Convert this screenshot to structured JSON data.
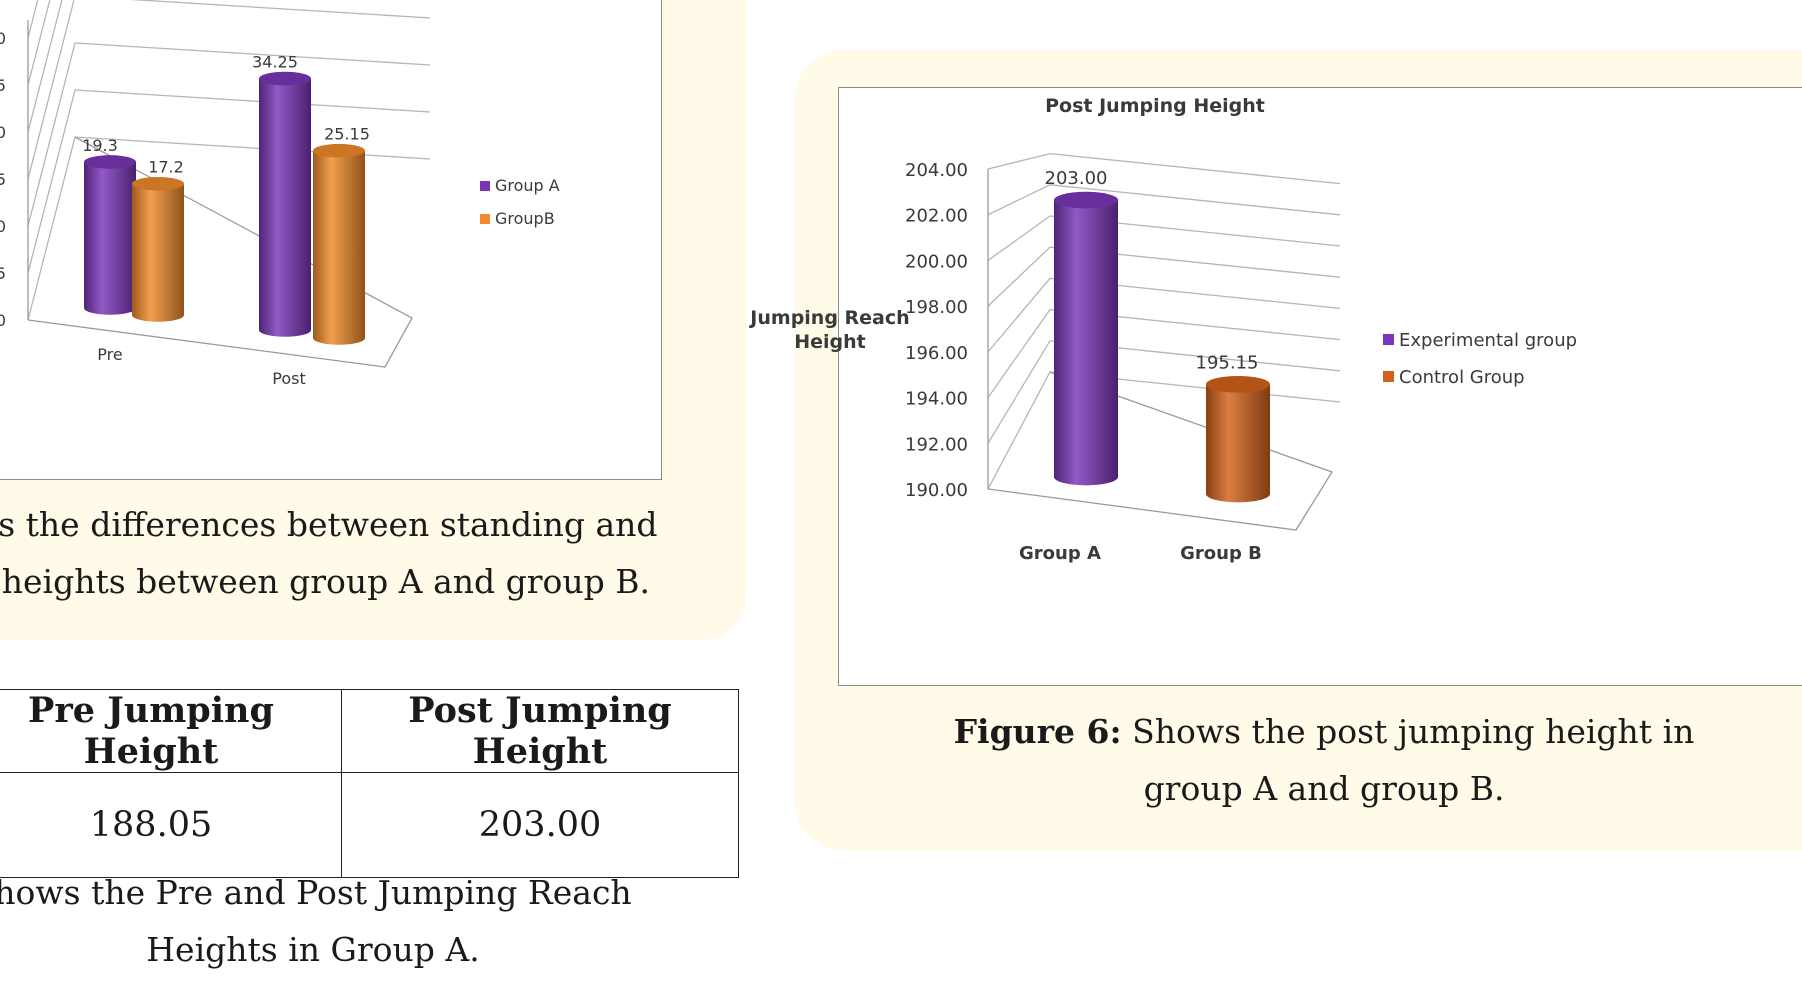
{
  "figure5": {
    "caption_line1": "ws the differences between standing and",
    "caption_line2": "h heights between group A and group B."
  },
  "figure6": {
    "caption_label": "Figure 6:",
    "caption_line1": " Shows the post jumping height in",
    "caption_line2": "group A and group B."
  },
  "table": {
    "headers": [
      "Pre Jumping Height",
      "Post Jumping Height"
    ],
    "rows": [
      [
        "188.05",
        "203.00"
      ]
    ],
    "caption_line1": "hows the Pre and Post Jumping Reach",
    "caption_line2": "Heights in Group A."
  },
  "colors": {
    "group_a_purple": "#7a36b8",
    "group_b_orange": "#f08a2a",
    "control_orange": "#d2621a",
    "panel_bg": "#fffbe8"
  },
  "chart_data": [
    {
      "type": "bar",
      "title": "",
      "categories": [
        "Pre",
        "Post"
      ],
      "series": [
        {
          "name": "Group A",
          "values": [
            19.3,
            34.25
          ],
          "labels": [
            "19.3",
            "34.25"
          ]
        },
        {
          "name": "GroupB",
          "values": [
            17.2,
            25.15
          ],
          "labels": [
            "17.2",
            "25.15"
          ]
        }
      ],
      "yticks": [
        "0",
        "5",
        "0",
        "5",
        "0",
        "5",
        "0"
      ],
      "ylim": [
        0,
        40
      ],
      "legend": "right",
      "grid": true
    },
    {
      "type": "bar",
      "title": "Post Jumping Height",
      "ylabel": "Jumping Reach Height",
      "categories": [
        "Group A",
        "Group B"
      ],
      "series": [
        {
          "name": "Experimental group",
          "values": [
            203.0,
            null
          ]
        },
        {
          "name": "Control Group",
          "values": [
            null,
            195.15
          ]
        }
      ],
      "data_labels": [
        "203.00",
        "195.15"
      ],
      "yticks": [
        "190.00",
        "192.00",
        "194.00",
        "196.00",
        "198.00",
        "200.00",
        "202.00",
        "204.00"
      ],
      "ylim": [
        190,
        204
      ],
      "legend": "right",
      "grid": true
    }
  ]
}
